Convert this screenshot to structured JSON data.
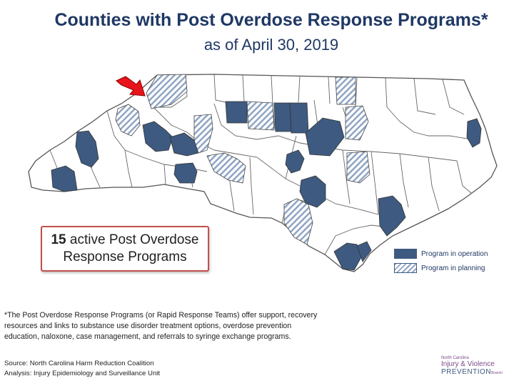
{
  "header": {
    "title": "Counties with Post Overdose Response Programs*",
    "subtitle": "as of April 30, 2019"
  },
  "callout": {
    "count": "15",
    "text_line1": "active Post Overdose",
    "text_line2": "Response Programs"
  },
  "legend": {
    "operation_label": "Program in operation",
    "planning_label": "Program in planning"
  },
  "colors": {
    "operation": "#3e5a80",
    "planning_hatch": "#8fa4c4",
    "county_border": "#555555",
    "arrow": "#e8141c"
  },
  "footnote": {
    "line1": "*The Post Overdose Response Programs (or Rapid Response Teams) offer support, recovery",
    "line2": "resources and links to substance use disorder treatment options, overdose prevention",
    "line3": "education, naloxone, case management, and referrals to syringe exchange programs."
  },
  "source": {
    "source_line": "Source: North Carolina Harm Reduction Coalition",
    "analysis_line": "Analysis: Injury Epidemiology and Surveillance Unit"
  },
  "logo": {
    "line1": "North Carolina",
    "line2": "Injury & Violence",
    "line3": "PREVENTION",
    "line4": "Branch"
  }
}
